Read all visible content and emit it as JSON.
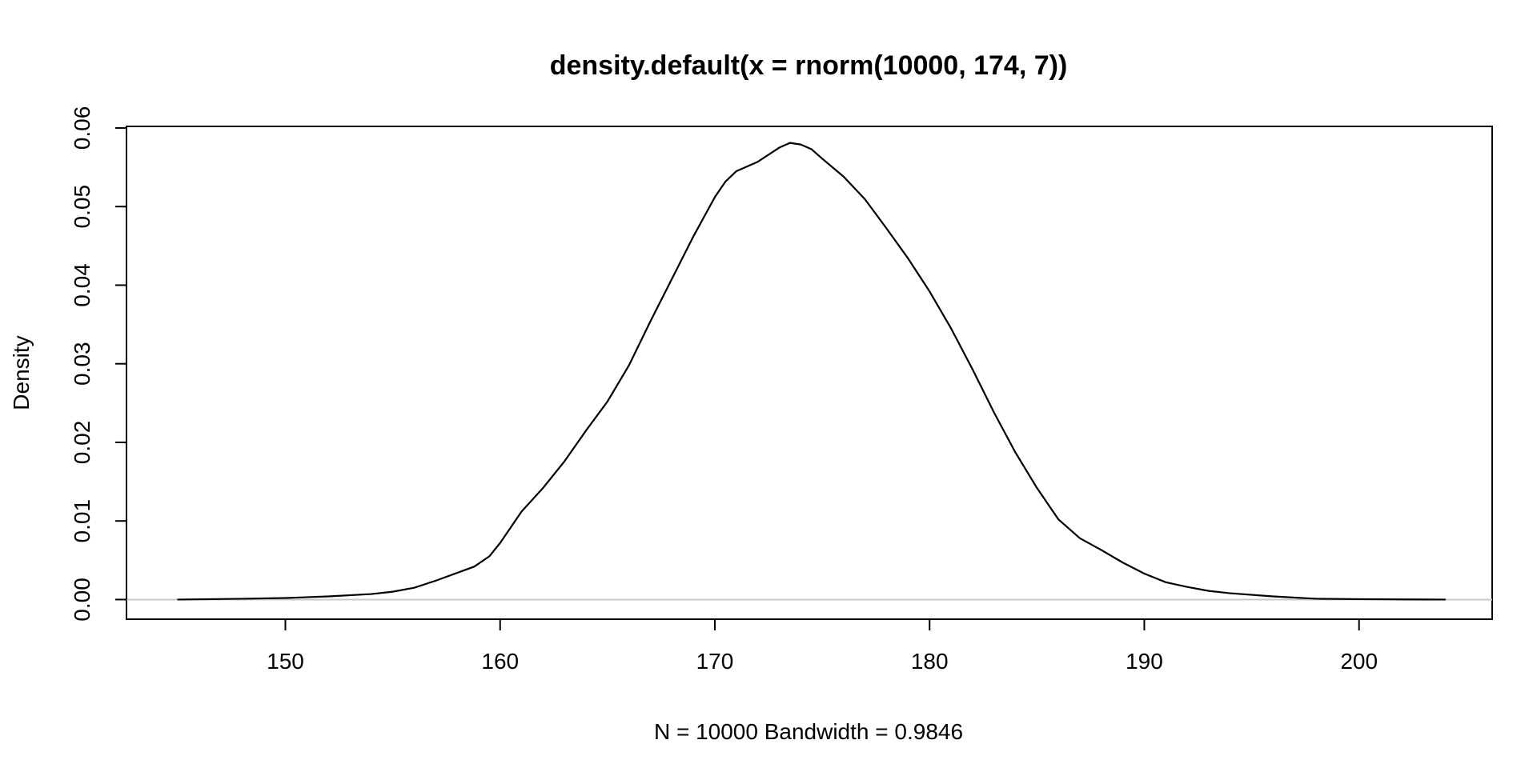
{
  "chart_data": {
    "type": "line",
    "title": "density.default(x = rnorm(10000, 174, 7))",
    "xlabel": "N = 10000   Bandwidth = 0.9846",
    "ylabel": "Density",
    "xlim": [
      142.6,
      206.2
    ],
    "ylim": [
      -0.0025,
      0.0602
    ],
    "grid": false,
    "zero_line": true,
    "x_ticks": [
      150,
      160,
      170,
      180,
      190,
      200
    ],
    "x_tick_labels": [
      "150",
      "160",
      "170",
      "180",
      "190",
      "200"
    ],
    "y_ticks": [
      0,
      0.01,
      0.02,
      0.03,
      0.04,
      0.05,
      0.06
    ],
    "y_tick_labels": [
      "0.00",
      "0.01",
      "0.02",
      "0.03",
      "0.04",
      "0.05",
      "0.06"
    ],
    "series": [
      {
        "x": [
          145.0,
          148.0,
          150.0,
          152.0,
          154.0,
          155.0,
          156.0,
          157.0,
          158.0,
          158.8,
          159.5,
          160.0,
          161.0,
          162.0,
          163.0,
          164.0,
          165.0,
          166.0,
          167.0,
          168.0,
          169.0,
          170.0,
          170.5,
          171.0,
          171.5,
          172.0,
          172.5,
          173.0,
          173.5,
          174.0,
          174.5,
          175.0,
          176.0,
          177.0,
          178.0,
          179.0,
          180.0,
          181.0,
          182.0,
          183.0,
          184.0,
          185.0,
          186.0,
          187.0,
          188.0,
          189.0,
          190.0,
          191.0,
          192.0,
          193.0,
          194.0,
          196.0,
          198.0,
          200.0,
          202.0,
          204.0
        ],
        "y": [
          0.0,
          0.0001,
          0.0002,
          0.0004,
          0.0007,
          0.001,
          0.0015,
          0.0024,
          0.0034,
          0.0042,
          0.0055,
          0.0072,
          0.0112,
          0.0142,
          0.0176,
          0.0215,
          0.0252,
          0.0298,
          0.0354,
          0.0408,
          0.0462,
          0.0512,
          0.0532,
          0.0545,
          0.0551,
          0.0557,
          0.0566,
          0.0575,
          0.0581,
          0.0579,
          0.0573,
          0.0561,
          0.0538,
          0.0509,
          0.0472,
          0.0434,
          0.0392,
          0.0345,
          0.0293,
          0.0238,
          0.0187,
          0.0142,
          0.0102,
          0.0078,
          0.0063,
          0.0047,
          0.0033,
          0.0022,
          0.0016,
          0.0011,
          0.0008,
          0.0004,
          0.0001,
          5e-05,
          2e-05,
          0.0
        ]
      }
    ]
  }
}
